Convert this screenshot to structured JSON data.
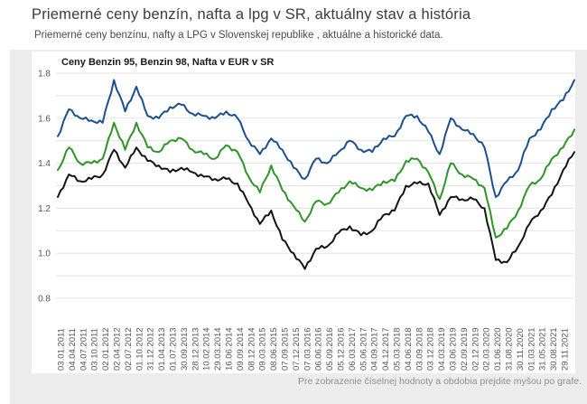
{
  "page": {
    "title": "Priemerné ceny benzín, nafta a lpg v SR, aktuálny stav a história",
    "subtitle": "Priemerné ceny benzínu, nafty a LPG v Slovenskej republike , aktuálne a historické data.",
    "footer_hint": "Pre zobrazenie číselnej hodnoty a obdobia prejdite myšou po grafe."
  },
  "chart_data": {
    "type": "line",
    "title": "Ceny Benzin 95, Benzin 98, Nafta v EUR v SR",
    "currency": "EUR",
    "ylim": [
      0.8,
      1.8
    ],
    "y_ticks": [
      "1.8",
      "1.6",
      "1.4",
      "1.2",
      "1.0",
      "0.8"
    ],
    "grid": "horizontal gridlines every 0.1, no vertical grid",
    "legend": "none (series identified in title; blue = Benzin 98, green = Benzin 95, black = Nafta)",
    "categories": [
      "03.01.2011",
      "04.04.2011",
      "04.07.2011",
      "03.10.2011",
      "02.01.2012",
      "02.04.2012",
      "02.07.2012",
      "01.10.2012",
      "31.12.2012",
      "01.04.2013",
      "01.07.2013",
      "30.09.2013",
      "28.12.2013",
      "10.02.2014",
      "29.03.2014",
      "16.06.2014",
      "09.09.2014",
      "08.12.2014",
      "09.03.2015",
      "08.06.2015",
      "07.09.2015",
      "07.12.2015",
      "07.03.2016",
      "06.06.2016",
      "05.09.2016",
      "05.12.2016",
      "06.03.2017",
      "05.06.2017",
      "04.09.2017",
      "04.12.2017",
      "05.03.2018",
      "04.06.2018",
      "03.09.2018",
      "03.12.2018",
      "04.03.2019",
      "03.06.2019",
      "02.09.2019",
      "02.12.2019",
      "02.03.2020",
      "01.06.2020",
      "31.08.2020",
      "30.11.2020",
      "01.03.2021",
      "31.05.2021",
      "30.08.2021",
      "29.11.2021"
    ],
    "series": [
      {
        "name": "Benzin 98",
        "color": "#1b4f8f",
        "values": [
          1.52,
          1.64,
          1.6,
          1.59,
          1.58,
          1.77,
          1.63,
          1.74,
          1.61,
          1.6,
          1.65,
          1.66,
          1.62,
          1.61,
          1.6,
          1.63,
          1.6,
          1.5,
          1.44,
          1.51,
          1.46,
          1.38,
          1.33,
          1.42,
          1.4,
          1.45,
          1.5,
          1.46,
          1.45,
          1.51,
          1.52,
          1.61,
          1.61,
          1.54,
          1.44,
          1.6,
          1.55,
          1.53,
          1.47,
          1.25,
          1.32,
          1.37,
          1.51,
          1.55,
          1.64,
          1.68
        ],
        "end_value": 1.77
      },
      {
        "name": "Benzin 95",
        "color": "#2e9428",
        "values": [
          1.37,
          1.47,
          1.4,
          1.4,
          1.42,
          1.58,
          1.46,
          1.58,
          1.47,
          1.45,
          1.5,
          1.51,
          1.46,
          1.44,
          1.42,
          1.48,
          1.45,
          1.34,
          1.27,
          1.39,
          1.28,
          1.21,
          1.14,
          1.23,
          1.22,
          1.27,
          1.32,
          1.29,
          1.28,
          1.32,
          1.32,
          1.41,
          1.42,
          1.36,
          1.24,
          1.4,
          1.35,
          1.33,
          1.29,
          1.07,
          1.11,
          1.19,
          1.3,
          1.33,
          1.42,
          1.47
        ],
        "end_value": 1.55
      },
      {
        "name": "Nafta",
        "color": "#141414",
        "values": [
          1.25,
          1.35,
          1.32,
          1.33,
          1.35,
          1.46,
          1.38,
          1.47,
          1.41,
          1.39,
          1.36,
          1.38,
          1.36,
          1.34,
          1.33,
          1.33,
          1.31,
          1.22,
          1.13,
          1.19,
          1.06,
          1.0,
          0.93,
          1.02,
          1.03,
          1.09,
          1.12,
          1.08,
          1.1,
          1.17,
          1.19,
          1.3,
          1.31,
          1.31,
          1.17,
          1.25,
          1.24,
          1.24,
          1.2,
          0.97,
          0.96,
          1.03,
          1.13,
          1.19,
          1.26,
          1.37
        ],
        "end_value": 1.45
      }
    ],
    "notes": "end_value = visible line endpoint just right of the last x tick label"
  },
  "style": {
    "panel_bg": "#ececec",
    "chart_bg": "#ffffff",
    "gridline_color": "#e3e3e3",
    "axis_label_color": "#555555"
  }
}
